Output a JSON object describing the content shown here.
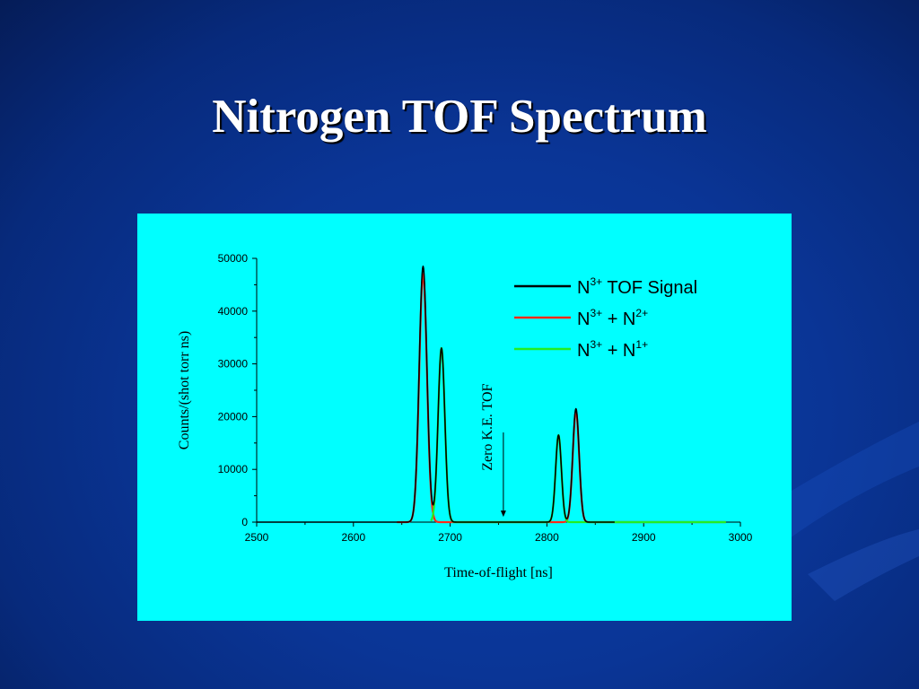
{
  "slide": {
    "title": "Nitrogen TOF Spectrum"
  },
  "colors": {
    "background": "#0a3596",
    "plot_background": "#00ffff",
    "tof_signal": "#000000",
    "n3_n2": "#ff2a1a",
    "n3_n1": "#22ee22"
  },
  "chart_data": {
    "type": "line",
    "title": "",
    "xlabel": "Time-of-flight [ns]",
    "ylabel": "Counts/(shot torr ns)",
    "xlim": [
      2500,
      3000
    ],
    "ylim": [
      0,
      50000
    ],
    "x_ticks": [
      "2500",
      "2600",
      "2700",
      "2800",
      "2900",
      "3000"
    ],
    "y_ticks": [
      "0",
      "10000",
      "20000",
      "30000",
      "40000",
      "50000"
    ],
    "legend_position": "top-right",
    "legend": [
      {
        "base": "N",
        "sup": "3+",
        "rest": " TOF Signal",
        "sup2": "",
        "color": "#000000"
      },
      {
        "base": "N",
        "sup": "3+",
        "rest": " + N",
        "sup2": "2+",
        "color": "#ff2a1a"
      },
      {
        "base": "N",
        "sup": "3+",
        "rest": " + N",
        "sup2": "1+",
        "color": "#22ee22"
      }
    ],
    "annotation": {
      "text": "Zero K.E. TOF",
      "x": 2755,
      "y_arrow_from": 17000,
      "y_arrow_to": 1000
    },
    "series": [
      {
        "name": "N3+ TOF Signal",
        "color": "#000000",
        "x_range": [
          2500,
          2870
        ],
        "baseline": 0,
        "peaks": [
          {
            "center": 2672,
            "height": 48500,
            "width": 4.0
          },
          {
            "center": 2691,
            "height": 33000,
            "width": 3.5
          },
          {
            "center": 2812,
            "height": 16500,
            "width": 3.0
          },
          {
            "center": 2830,
            "height": 21500,
            "width": 3.3
          }
        ]
      },
      {
        "name": "N3+ + N2+",
        "color": "#ff2a1a",
        "x_range": [
          2645,
          2985
        ],
        "baseline": 0,
        "peaks": [
          {
            "center": 2672,
            "height": 47000,
            "width": 4.0
          },
          {
            "center": 2830,
            "height": 21000,
            "width": 3.3
          }
        ]
      },
      {
        "name": "N3+ + N1+",
        "color": "#22ee22",
        "x_range": [
          2680,
          2985
        ],
        "baseline": 0,
        "peaks": [
          {
            "center": 2691,
            "height": 33000,
            "width": 3.5
          },
          {
            "center": 2812,
            "height": 16500,
            "width": 3.0
          }
        ]
      }
    ]
  }
}
